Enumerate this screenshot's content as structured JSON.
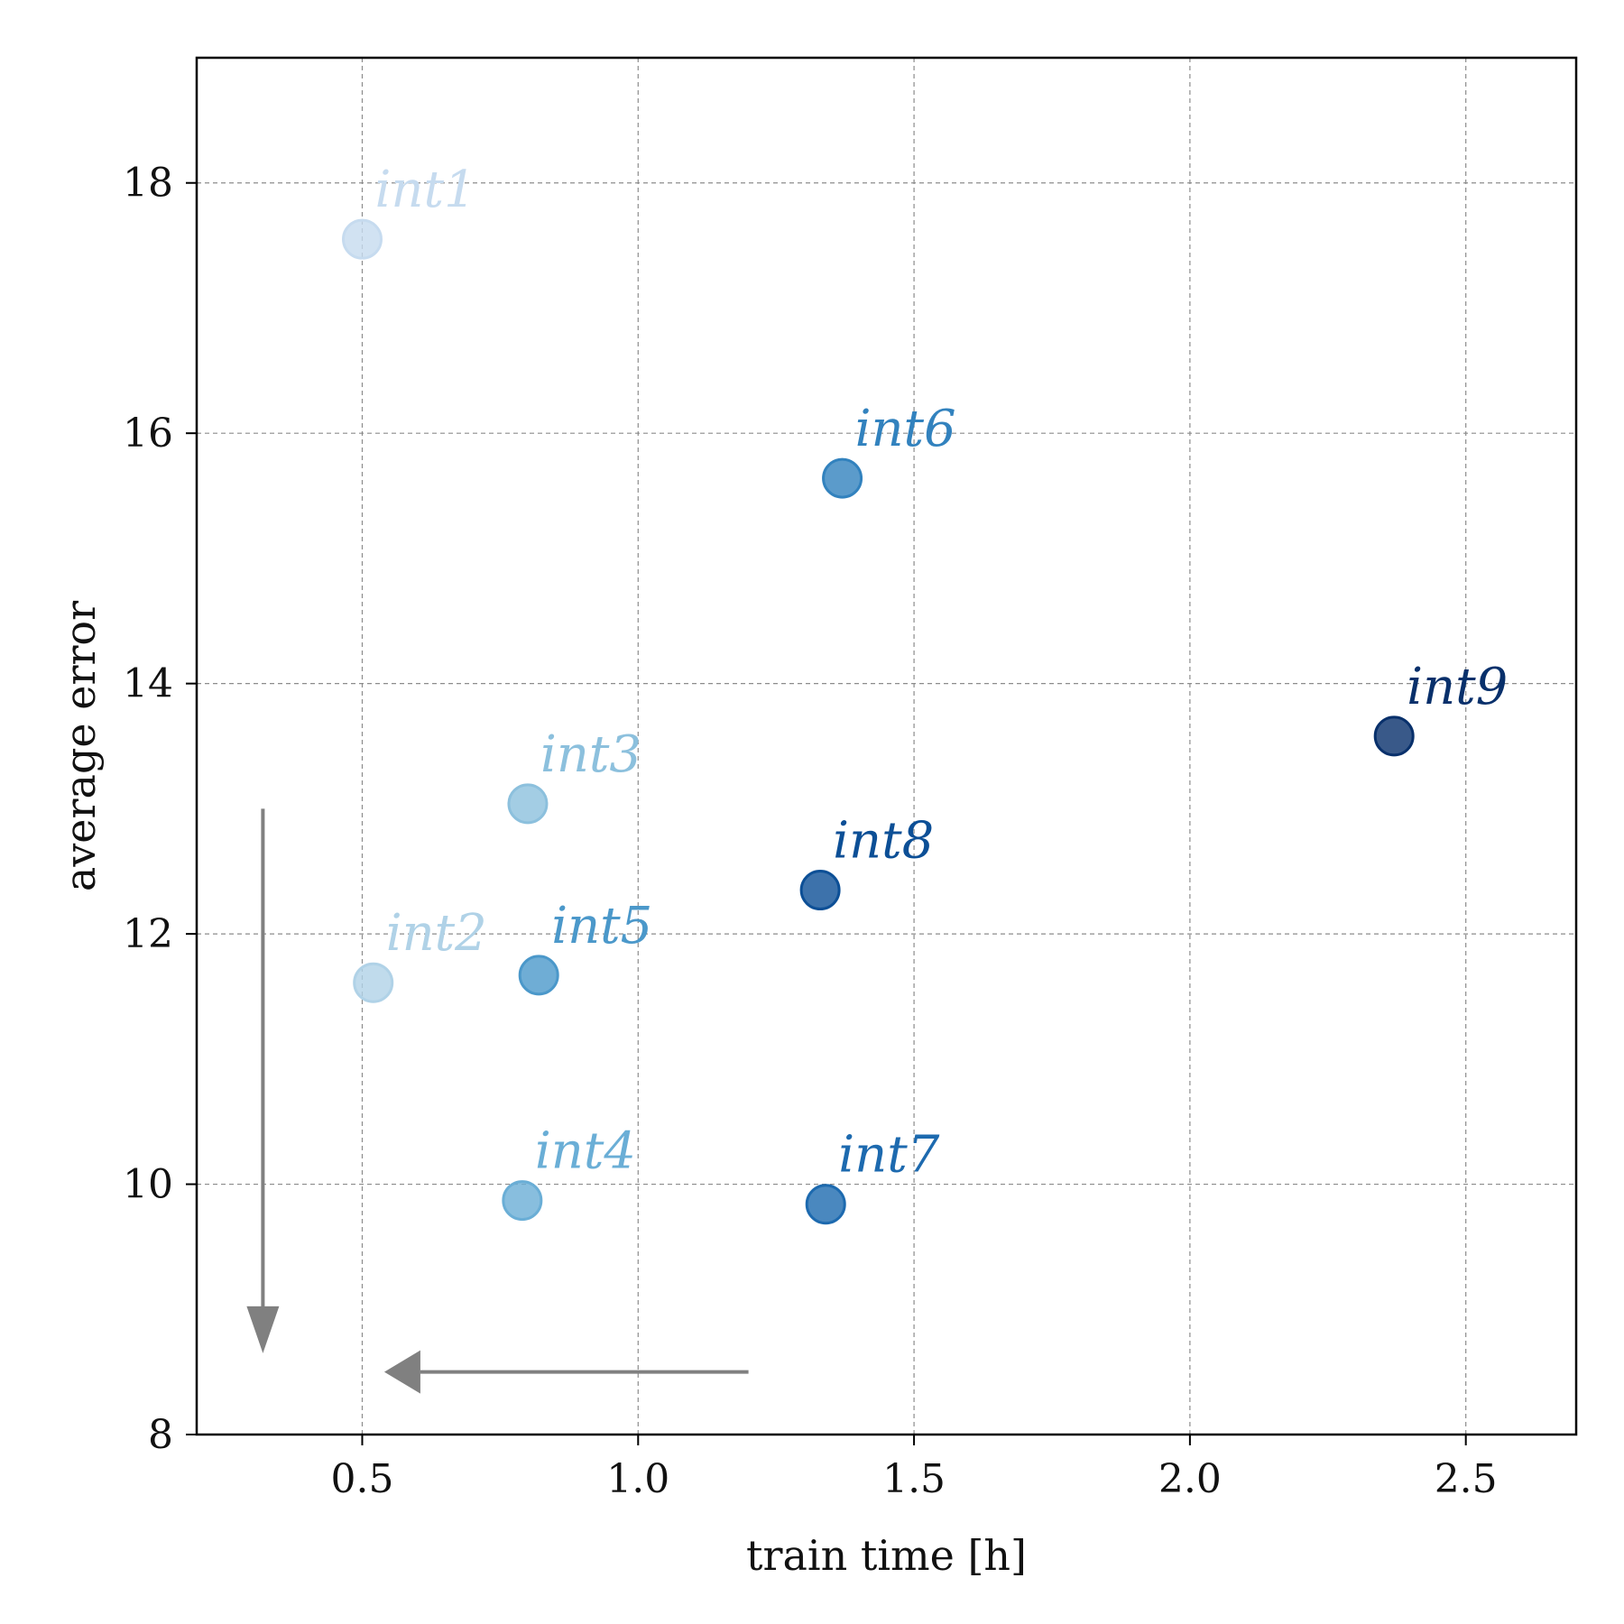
{
  "chart_data": {
    "type": "scatter",
    "xlabel": "train time [h]",
    "ylabel": "average error",
    "xlim": [
      0.2,
      2.7
    ],
    "ylim": [
      8,
      19
    ],
    "xticks": [
      0.5,
      1.0,
      1.5,
      2.0,
      2.5
    ],
    "xtick_labels": [
      "0.5",
      "1.0",
      "1.5",
      "2.0",
      "2.5"
    ],
    "yticks": [
      8,
      10,
      12,
      14,
      16,
      18
    ],
    "ytick_labels": [
      "8",
      "10",
      "12",
      "14",
      "16",
      "18"
    ],
    "grid": true,
    "points": [
      {
        "label": "int1",
        "x": 0.5,
        "y": 17.55,
        "color": "#c6dbef"
      },
      {
        "label": "int2",
        "x": 0.52,
        "y": 11.61,
        "color": "#b0d2e7"
      },
      {
        "label": "int3",
        "x": 0.8,
        "y": 13.04,
        "color": "#8cc0dd"
      },
      {
        "label": "int4",
        "x": 0.79,
        "y": 9.87,
        "color": "#6aaed6"
      },
      {
        "label": "int5",
        "x": 0.82,
        "y": 11.67,
        "color": "#4b98ca"
      },
      {
        "label": "int6",
        "x": 1.37,
        "y": 15.64,
        "color": "#3282be"
      },
      {
        "label": "int7",
        "x": 1.34,
        "y": 9.84,
        "color": "#1d6aaf"
      },
      {
        "label": "int8",
        "x": 1.33,
        "y": 12.35,
        "color": "#0c4f96"
      },
      {
        "label": "int9",
        "x": 2.37,
        "y": 13.58,
        "color": "#08306b"
      }
    ],
    "arrows": [
      {
        "direction": "down",
        "x": 0.32,
        "y_from": 13.0,
        "y_to": 8.65,
        "color": "#808080"
      },
      {
        "direction": "left",
        "y": 8.5,
        "x_from": 1.2,
        "x_to": 0.54,
        "color": "#808080"
      }
    ]
  }
}
